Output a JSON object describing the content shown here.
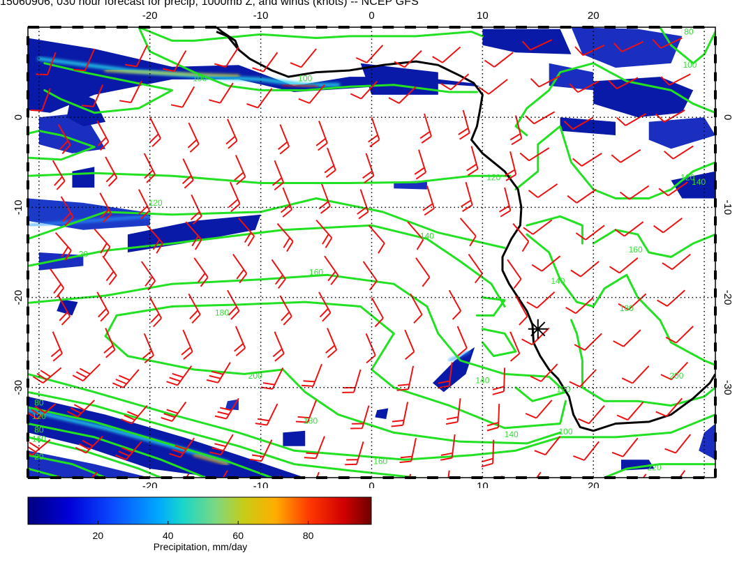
{
  "title": "15060906, 030 hour forecast for precip, 1000mb Z, and winds (knots) -- NCEP GFS",
  "colors": {
    "contour": "#22e022",
    "barb": "#ee1111",
    "coast": "#000000",
    "grid": "#000000",
    "ocean": "#ffffff"
  },
  "map": {
    "lon_range": [
      -31,
      31
    ],
    "lat_range": [
      -40,
      10
    ],
    "lon_ticks_top": [
      "-20",
      "-10",
      "0",
      "10",
      "20"
    ],
    "lon_ticks_bottom": [
      "-20",
      "-10",
      "0",
      "10",
      "20"
    ],
    "lat_ticks_left": [
      "0",
      "-10",
      "-20",
      "-30"
    ],
    "lat_ticks_right": [
      "0",
      "-10",
      "-20",
      "-30"
    ],
    "lon_tick_values": [
      -20,
      -10,
      0,
      10,
      20
    ],
    "lat_tick_values": [
      0,
      -10,
      -20,
      -30
    ],
    "grid_lines": true,
    "grid_lon": [
      -30,
      -20,
      -10,
      0,
      10,
      20,
      30
    ],
    "grid_lat": [
      0,
      -10,
      -20,
      -30
    ],
    "marker": {
      "lon": 15,
      "lat": -23.5,
      "symbol": "asterisk"
    }
  },
  "contour_labels": [
    {
      "text": "100",
      "lon": -6,
      "lat": 4
    },
    {
      "text": "120",
      "lon": -19.5,
      "lat": -9.8
    },
    {
      "text": "120",
      "lon": 11,
      "lat": -7
    },
    {
      "text": "140",
      "lon": 5,
      "lat": -13.5
    },
    {
      "text": "160",
      "lon": -5,
      "lat": -17.5
    },
    {
      "text": "180",
      "lon": -13.5,
      "lat": -22
    },
    {
      "text": "200",
      "lon": -10.5,
      "lat": -29
    },
    {
      "text": "180",
      "lon": -5.5,
      "lat": -34
    },
    {
      "text": "160",
      "lon": 0.8,
      "lat": -38.5
    },
    {
      "text": "140",
      "lon": 12.6,
      "lat": -35.5
    },
    {
      "text": "100",
      "lon": 17.5,
      "lat": -35.2
    },
    {
      "text": "120",
      "lon": 17.3,
      "lat": -30.5
    },
    {
      "text": "140",
      "lon": 10,
      "lat": -29.5
    },
    {
      "text": "140",
      "lon": 16.8,
      "lat": -18.5
    },
    {
      "text": "160",
      "lon": 23.8,
      "lat": -15
    },
    {
      "text": "180",
      "lon": 23,
      "lat": -21.5
    },
    {
      "text": "200",
      "lon": 27.5,
      "lat": -29
    },
    {
      "text": "220",
      "lon": 25.5,
      "lat": -39.2
    },
    {
      "text": "120",
      "lon": 28.5,
      "lat": -7
    },
    {
      "text": "140",
      "lon": 29.5,
      "lat": -7.5
    },
    {
      "text": "100",
      "lon": 28.7,
      "lat": 5.5
    },
    {
      "text": "80",
      "lon": 28.6,
      "lat": 9.2
    },
    {
      "text": "100",
      "lon": -15.5,
      "lat": 4
    },
    {
      "text": "20",
      "lon": -26,
      "lat": -15.5
    },
    {
      "text": "80",
      "lon": -30,
      "lat": -32
    },
    {
      "text": "120",
      "lon": -30,
      "lat": -33.5
    },
    {
      "text": "160",
      "lon": -30,
      "lat": -36
    },
    {
      "text": "80",
      "lon": -30,
      "lat": -35
    },
    {
      "text": "20",
      "lon": -30,
      "lat": -38
    }
  ],
  "colorbar": {
    "label": "Precipitation, mm/day",
    "ticks": [
      "20",
      "40",
      "60",
      "80"
    ],
    "tick_values": [
      20,
      40,
      60,
      80
    ],
    "range": [
      0,
      98
    ],
    "colormap": "rainbow (dark blue to dark red)"
  }
}
